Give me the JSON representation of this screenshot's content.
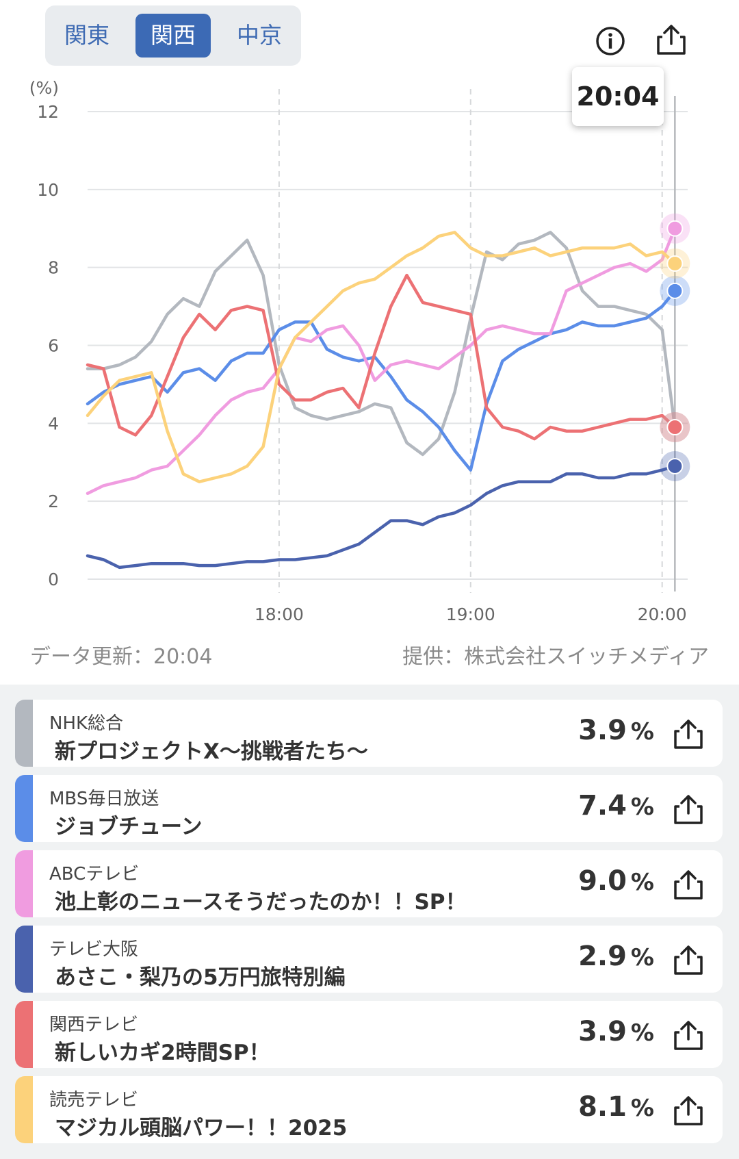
{
  "region_tabs": [
    {
      "label": "関東",
      "active": false
    },
    {
      "label": "関西",
      "active": true
    },
    {
      "label": "中京",
      "active": false
    }
  ],
  "header_icons": [
    "info-icon",
    "share-icon"
  ],
  "chart_data": {
    "type": "line",
    "ylabel": "(%)",
    "ylim": [
      0,
      12
    ],
    "y_ticks": [
      "0",
      "2",
      "4",
      "6",
      "8",
      "10",
      "12"
    ],
    "x_ticks": [
      "18:00",
      "19:00",
      "20:00"
    ],
    "grid": true,
    "cursor_label": "20:04",
    "series": [
      {
        "name": "NHK総合",
        "color": "#b3b8bf",
        "x": [
          "17:00",
          "17:05",
          "17:10",
          "17:15",
          "17:20",
          "17:25",
          "17:30",
          "17:35",
          "17:40",
          "17:45",
          "17:50",
          "17:55",
          "18:00",
          "18:05",
          "18:10",
          "18:15",
          "18:20",
          "18:25",
          "18:30",
          "18:35",
          "18:40",
          "18:45",
          "18:50",
          "18:55",
          "19:00",
          "19:05",
          "19:10",
          "19:15",
          "19:20",
          "19:25",
          "19:30",
          "19:35",
          "19:40",
          "19:45",
          "19:50",
          "19:55",
          "20:00",
          "20:04"
        ],
        "y": [
          5.4,
          5.4,
          5.5,
          5.7,
          6.1,
          6.8,
          7.2,
          7.0,
          7.9,
          8.3,
          8.7,
          7.8,
          5.5,
          4.4,
          4.2,
          4.1,
          4.2,
          4.3,
          4.5,
          4.4,
          3.5,
          3.2,
          3.6,
          4.8,
          6.7,
          8.4,
          8.2,
          8.6,
          8.7,
          8.9,
          8.5,
          7.4,
          7.0,
          7.0,
          6.9,
          6.8,
          6.4,
          3.9
        ]
      },
      {
        "name": "MBS毎日放送",
        "color": "#5b8de8",
        "x": [
          "17:00",
          "17:05",
          "17:10",
          "17:15",
          "17:20",
          "17:25",
          "17:30",
          "17:35",
          "17:40",
          "17:45",
          "17:50",
          "17:55",
          "18:00",
          "18:05",
          "18:10",
          "18:15",
          "18:20",
          "18:25",
          "18:30",
          "18:35",
          "18:40",
          "18:45",
          "18:50",
          "18:55",
          "19:00",
          "19:05",
          "19:10",
          "19:15",
          "19:20",
          "19:25",
          "19:30",
          "19:35",
          "19:40",
          "19:45",
          "19:50",
          "19:55",
          "20:00",
          "20:04"
        ],
        "y": [
          4.5,
          4.8,
          5.0,
          5.1,
          5.2,
          4.8,
          5.3,
          5.4,
          5.1,
          5.6,
          5.8,
          5.8,
          6.4,
          6.6,
          6.6,
          5.9,
          5.7,
          5.6,
          5.7,
          5.2,
          4.6,
          4.3,
          3.9,
          3.3,
          2.8,
          4.5,
          5.6,
          5.9,
          6.1,
          6.3,
          6.4,
          6.6,
          6.5,
          6.5,
          6.6,
          6.7,
          7.0,
          7.4
        ]
      },
      {
        "name": "ABCテレビ",
        "color": "#f09ce0",
        "x": [
          "17:00",
          "17:05",
          "17:10",
          "17:15",
          "17:20",
          "17:25",
          "17:30",
          "17:35",
          "17:40",
          "17:45",
          "17:50",
          "17:55",
          "18:00",
          "18:05",
          "18:10",
          "18:15",
          "18:20",
          "18:25",
          "18:30",
          "18:35",
          "18:40",
          "18:45",
          "18:50",
          "18:55",
          "19:00",
          "19:05",
          "19:10",
          "19:15",
          "19:20",
          "19:25",
          "19:30",
          "19:35",
          "19:40",
          "19:45",
          "19:50",
          "19:55",
          "20:00",
          "20:04"
        ],
        "y": [
          2.2,
          2.4,
          2.5,
          2.6,
          2.8,
          2.9,
          3.3,
          3.7,
          4.2,
          4.6,
          4.8,
          4.9,
          5.4,
          6.2,
          6.1,
          6.4,
          6.5,
          6.0,
          5.1,
          5.5,
          5.6,
          5.5,
          5.4,
          5.7,
          6.0,
          6.4,
          6.5,
          6.4,
          6.3,
          6.3,
          7.4,
          7.6,
          7.8,
          8.0,
          8.1,
          7.9,
          8.2,
          9.0
        ]
      },
      {
        "name": "テレビ大阪",
        "color": "#4a62ad",
        "x": [
          "17:00",
          "17:05",
          "17:10",
          "17:15",
          "17:20",
          "17:25",
          "17:30",
          "17:35",
          "17:40",
          "17:45",
          "17:50",
          "17:55",
          "18:00",
          "18:05",
          "18:10",
          "18:15",
          "18:20",
          "18:25",
          "18:30",
          "18:35",
          "18:40",
          "18:45",
          "18:50",
          "18:55",
          "19:00",
          "19:05",
          "19:10",
          "19:15",
          "19:20",
          "19:25",
          "19:30",
          "19:35",
          "19:40",
          "19:45",
          "19:50",
          "19:55",
          "20:00",
          "20:04"
        ],
        "y": [
          0.6,
          0.5,
          0.3,
          0.35,
          0.4,
          0.4,
          0.4,
          0.35,
          0.35,
          0.4,
          0.45,
          0.45,
          0.5,
          0.5,
          0.55,
          0.6,
          0.75,
          0.9,
          1.2,
          1.5,
          1.5,
          1.4,
          1.6,
          1.7,
          1.9,
          2.2,
          2.4,
          2.5,
          2.5,
          2.5,
          2.7,
          2.7,
          2.6,
          2.6,
          2.7,
          2.7,
          2.8,
          2.9
        ]
      },
      {
        "name": "関西テレビ",
        "color": "#ec7174",
        "x": [
          "17:00",
          "17:05",
          "17:10",
          "17:15",
          "17:20",
          "17:25",
          "17:30",
          "17:35",
          "17:40",
          "17:45",
          "17:50",
          "17:55",
          "18:00",
          "18:05",
          "18:10",
          "18:15",
          "18:20",
          "18:25",
          "18:30",
          "18:35",
          "18:40",
          "18:45",
          "18:50",
          "18:55",
          "19:00",
          "19:05",
          "19:10",
          "19:15",
          "19:20",
          "19:25",
          "19:30",
          "19:35",
          "19:40",
          "19:45",
          "19:50",
          "19:55",
          "20:00",
          "20:04"
        ],
        "y": [
          5.5,
          5.4,
          3.9,
          3.7,
          4.2,
          5.2,
          6.2,
          6.8,
          6.4,
          6.9,
          7.0,
          6.9,
          5.0,
          4.6,
          4.6,
          4.8,
          4.9,
          4.4,
          5.8,
          7.0,
          7.8,
          7.1,
          7.0,
          6.9,
          6.8,
          4.4,
          3.9,
          3.8,
          3.6,
          3.9,
          3.8,
          3.8,
          3.9,
          4.0,
          4.1,
          4.1,
          4.2,
          3.9
        ]
      },
      {
        "name": "読売テレビ",
        "color": "#fcd27b",
        "x": [
          "17:00",
          "17:05",
          "17:10",
          "17:15",
          "17:20",
          "17:25",
          "17:30",
          "17:35",
          "17:40",
          "17:45",
          "17:50",
          "17:55",
          "18:00",
          "18:05",
          "18:10",
          "18:15",
          "18:20",
          "18:25",
          "18:30",
          "18:35",
          "18:40",
          "18:45",
          "18:50",
          "18:55",
          "19:00",
          "19:05",
          "19:10",
          "19:15",
          "19:20",
          "19:25",
          "19:30",
          "19:35",
          "19:40",
          "19:45",
          "19:50",
          "19:55",
          "20:00",
          "20:04"
        ],
        "y": [
          4.2,
          4.7,
          5.1,
          5.2,
          5.3,
          3.8,
          2.7,
          2.5,
          2.6,
          2.7,
          2.9,
          3.4,
          5.4,
          6.2,
          6.6,
          7.0,
          7.4,
          7.6,
          7.7,
          8.0,
          8.3,
          8.5,
          8.8,
          8.9,
          8.5,
          8.3,
          8.3,
          8.4,
          8.5,
          8.3,
          8.4,
          8.5,
          8.5,
          8.5,
          8.6,
          8.3,
          8.4,
          8.1
        ]
      }
    ]
  },
  "footer": {
    "data_updated": "データ更新：20:04",
    "source": "提供：株式会社スイッチメディア"
  },
  "channels": [
    {
      "channel": "NHK総合",
      "program": "新プロジェクトX～挑戦者たち～",
      "rating": "3.9",
      "unit": "%",
      "color": "#b3b8bf"
    },
    {
      "channel": "MBS毎日放送",
      "program": "ジョブチューン",
      "rating": "7.4",
      "unit": "%",
      "color": "#5b8de8"
    },
    {
      "channel": "ABCテレビ",
      "program": "池上彰のニュースそうだったのか！！SP！",
      "rating": "9.0",
      "unit": "%",
      "color": "#f09ce0"
    },
    {
      "channel": "テレビ大阪",
      "program": "あさこ・梨乃の5万円旅特別編",
      "rating": "2.9",
      "unit": "%",
      "color": "#4a62ad"
    },
    {
      "channel": "関西テレビ",
      "program": "新しいカギ2時間SP！",
      "rating": "3.9",
      "unit": "%",
      "color": "#ec7174"
    },
    {
      "channel": "読売テレビ",
      "program": "マジカル頭脳パワー！！2025",
      "rating": "8.1",
      "unit": "%",
      "color": "#fcd27b"
    }
  ]
}
